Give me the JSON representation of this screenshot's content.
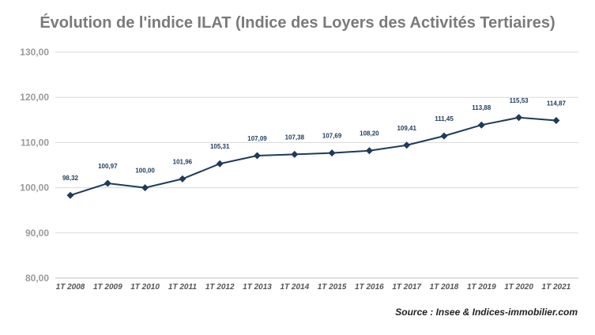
{
  "chart_data": {
    "type": "line",
    "title": "Évolution de l'indice ILAT (Indice des Loyers des Activités Tertiaires)",
    "source": "Source : Insee & Indices-immobilier.com",
    "categories": [
      "1T 2008",
      "1T 2009",
      "1T 2010",
      "1T 2011",
      "1T 2012",
      "1T 2013",
      "1T 2014",
      "1T 2015",
      "1T 2016",
      "1T 2017",
      "1T 2018",
      "1T 2019",
      "1T 2020",
      "1T 2021"
    ],
    "values": [
      98.32,
      100.97,
      100.0,
      101.96,
      105.31,
      107.09,
      107.38,
      107.69,
      108.2,
      109.41,
      111.45,
      113.88,
      115.53,
      114.87
    ],
    "data_labels": [
      "98,32",
      "100,97",
      "100,00",
      "101,96",
      "105,31",
      "107,09",
      "107,38",
      "107,69",
      "108,20",
      "109,41",
      "111,45",
      "113,88",
      "115,53",
      "114,87"
    ],
    "y_ticks": [
      "80,00",
      "90,00",
      "100,00",
      "110,00",
      "120,00",
      "130,00"
    ],
    "ylim": [
      80,
      130
    ],
    "grid": true,
    "legend": "none",
    "colors": {
      "line": "#1f3a5a",
      "grid": "#d9d9d9",
      "title": "#7a7a7a"
    }
  }
}
